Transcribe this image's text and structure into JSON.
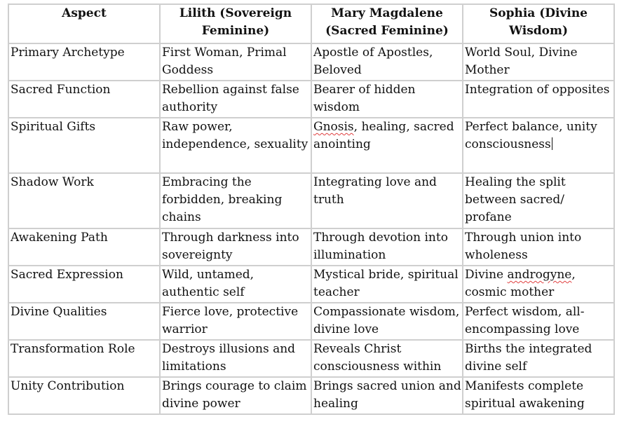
{
  "table": {
    "headers": [
      "Aspect",
      "Lilith (Sovereign Feminine)",
      "Mary Magdalene (Sacred Feminine)",
      "Sophia (Divine Wisdom)"
    ],
    "rows": [
      [
        "Primary Archetype",
        "First Woman, Primal Goddess",
        "Apostle of Apostles, Beloved",
        "World Soul, Divine Mother"
      ],
      [
        "Sacred Function",
        "Rebellion against false authority",
        "Bearer of hidden wisdom",
        "Integration of opposites"
      ],
      [
        "Spiritual Gifts",
        "Raw power, independence, sexuality",
        "Gnosis, healing, sacred anointing",
        "Perfect balance, unity consciousness"
      ],
      [
        "Shadow Work",
        "Embracing the forbidden, breaking chains",
        "Integrating love and truth",
        "Healing the split between sacred/ profane"
      ],
      [
        "Awakening Path",
        "Through darkness into sovereignty",
        "Through devotion into illumination",
        "Through union into wholeness"
      ],
      [
        "Sacred Expression",
        "Wild, untamed, authentic self",
        "Mystical bride, spiritual teacher",
        "Divine androgyne, cosmic mother"
      ],
      [
        "Divine Qualities",
        "Fierce love, protective warrior",
        "Compassionate wisdom, divine love",
        "Perfect wisdom, all-encompassing love"
      ],
      [
        "Transformation Role",
        "Destroys illusions and limitations",
        "Reveals Christ consciousness within",
        "Births the integrated divine self"
      ],
      [
        "Unity Contribution",
        "Brings courage to claim divine power",
        "Brings sacred union and healing",
        "Manifests complete spiritual awakening"
      ]
    ]
  }
}
